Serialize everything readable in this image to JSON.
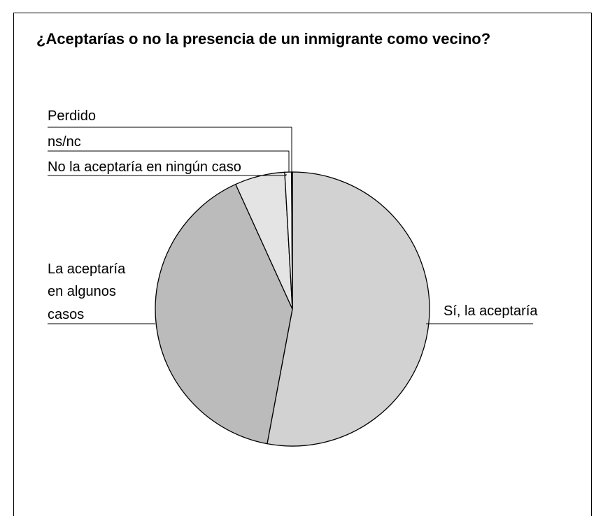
{
  "chart_data": {
    "type": "pie",
    "title": "¿Aceptarías o no la presencia de un inmigrante como vecino?",
    "slices": [
      {
        "label": "Sí, la aceptaría",
        "value": 53.0,
        "color": "#d2d2d2"
      },
      {
        "label": "La aceptaría en algunos casos",
        "label_lines": [
          "La aceptaría",
          "en algunos",
          "casos"
        ],
        "value": 40.3,
        "color": "#bbbbbb"
      },
      {
        "label": "No la aceptaría en ningún caso",
        "value": 5.9,
        "color": "#e4e4e4"
      },
      {
        "label": "ns/nc",
        "value": 0.8,
        "color": "#f2f2f2"
      },
      {
        "label": "Perdido",
        "value": 0.1,
        "color": "#ffffff"
      }
    ],
    "start": "top",
    "direction": "clockwise",
    "stroke": "#000000"
  }
}
